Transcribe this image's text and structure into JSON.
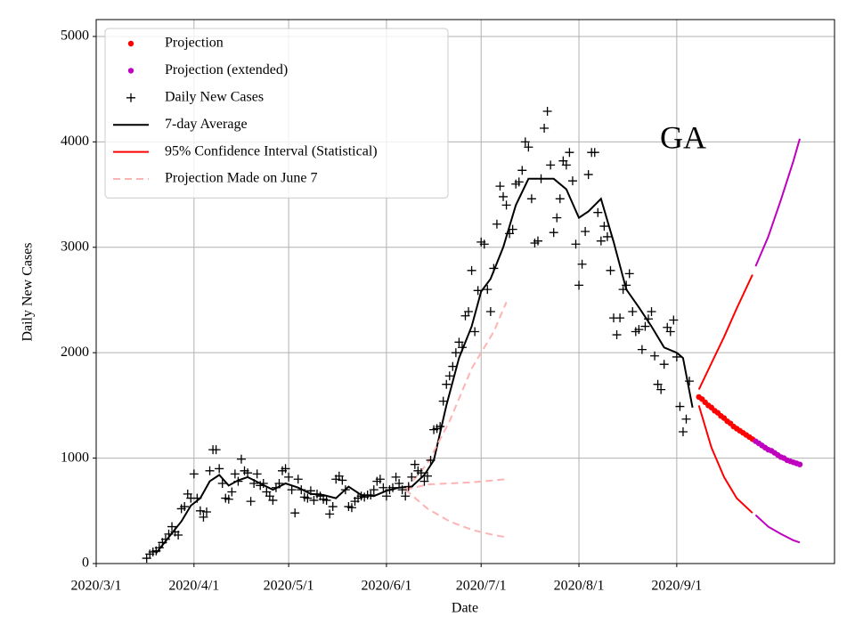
{
  "chart_data": {
    "type": "line",
    "title": "GA",
    "x_label": "Date",
    "y_label": "Daily New Cases",
    "xlim": [
      "2020/3/1",
      "2020/10/21"
    ],
    "xticks": [
      "2020/3/1",
      "2020/4/1",
      "2020/5/1",
      "2020/6/1",
      "2020/7/1",
      "2020/8/1",
      "2020/9/1"
    ],
    "ylim": [
      0,
      5160
    ],
    "yticks": [
      0,
      1000,
      2000,
      3000,
      4000,
      5000
    ],
    "grid": true,
    "legend": "upper left",
    "series": [
      {
        "name": "Projection",
        "color": "#ff0000",
        "marker": "dot",
        "x": [
          "2020/9/8",
          "2020/9/9",
          "2020/9/10",
          "2020/9/11",
          "2020/9/12",
          "2020/9/13",
          "2020/9/14",
          "2020/9/15",
          "2020/9/16",
          "2020/9/17",
          "2020/9/18",
          "2020/9/19",
          "2020/9/20",
          "2020/9/21",
          "2020/9/22",
          "2020/9/23",
          "2020/9/24",
          "2020/9/25"
        ],
        "values": [
          1580,
          1560,
          1530,
          1500,
          1480,
          1450,
          1430,
          1400,
          1380,
          1350,
          1330,
          1300,
          1280,
          1260,
          1240,
          1220,
          1200,
          1180
        ]
      },
      {
        "name": "Projection (extended)",
        "color": "#bf00bf",
        "marker": "dot",
        "x": [
          "2020/9/26",
          "2020/9/27",
          "2020/9/28",
          "2020/9/29",
          "2020/9/30",
          "2020/10/1",
          "2020/10/2",
          "2020/10/3",
          "2020/10/4",
          "2020/10/5",
          "2020/10/6",
          "2020/10/7",
          "2020/10/8",
          "2020/10/9",
          "2020/10/10"
        ],
        "values": [
          1160,
          1140,
          1120,
          1100,
          1080,
          1070,
          1050,
          1030,
          1010,
          1000,
          980,
          970,
          960,
          950,
          940
        ]
      },
      {
        "name": "Daily New Cases",
        "color": "#000000",
        "marker": "plus",
        "x": [
          "2020/3/17",
          "2020/3/18",
          "2020/3/19",
          "2020/3/20",
          "2020/3/21",
          "2020/3/22",
          "2020/3/23",
          "2020/3/24",
          "2020/3/25",
          "2020/3/26",
          "2020/3/27",
          "2020/3/28",
          "2020/3/29",
          "2020/3/30",
          "2020/3/31",
          "2020/4/1",
          "2020/4/2",
          "2020/4/3",
          "2020/4/4",
          "2020/4/5",
          "2020/4/6",
          "2020/4/7",
          "2020/4/8",
          "2020/4/9",
          "2020/4/10",
          "2020/4/11",
          "2020/4/12",
          "2020/4/13",
          "2020/4/14",
          "2020/4/15",
          "2020/4/16",
          "2020/4/17",
          "2020/4/18",
          "2020/4/19",
          "2020/4/20",
          "2020/4/21",
          "2020/4/22",
          "2020/4/23",
          "2020/4/24",
          "2020/4/25",
          "2020/4/26",
          "2020/4/27",
          "2020/4/28",
          "2020/4/29",
          "2020/4/30",
          "2020/5/1",
          "2020/5/2",
          "2020/5/3",
          "2020/5/4",
          "2020/5/5",
          "2020/5/6",
          "2020/5/7",
          "2020/5/8",
          "2020/5/9",
          "2020/5/10",
          "2020/5/11",
          "2020/5/12",
          "2020/5/13",
          "2020/5/14",
          "2020/5/15",
          "2020/5/16",
          "2020/5/17",
          "2020/5/18",
          "2020/5/19",
          "2020/5/20",
          "2020/5/21",
          "2020/5/22",
          "2020/5/23",
          "2020/5/24",
          "2020/5/25",
          "2020/5/26",
          "2020/5/27",
          "2020/5/28",
          "2020/5/29",
          "2020/5/30",
          "2020/5/31",
          "2020/6/1",
          "2020/6/2",
          "2020/6/3",
          "2020/6/4",
          "2020/6/5",
          "2020/6/6",
          "2020/6/7",
          "2020/6/8",
          "2020/6/9",
          "2020/6/10",
          "2020/6/11",
          "2020/6/12",
          "2020/6/13",
          "2020/6/14",
          "2020/6/15",
          "2020/6/16",
          "2020/6/17",
          "2020/6/18",
          "2020/6/19",
          "2020/6/20",
          "2020/6/21",
          "2020/6/22",
          "2020/6/23",
          "2020/6/24",
          "2020/6/25",
          "2020/6/26",
          "2020/6/27",
          "2020/6/28",
          "2020/6/29",
          "2020/6/30",
          "2020/7/1",
          "2020/7/2",
          "2020/7/3",
          "2020/7/4",
          "2020/7/5",
          "2020/7/6",
          "2020/7/7",
          "2020/7/8",
          "2020/7/9",
          "2020/7/10",
          "2020/7/11",
          "2020/7/12",
          "2020/7/13",
          "2020/7/14",
          "2020/7/15",
          "2020/7/16",
          "2020/7/17",
          "2020/7/18",
          "2020/7/19",
          "2020/7/20",
          "2020/7/21",
          "2020/7/22",
          "2020/7/23",
          "2020/7/24",
          "2020/7/25",
          "2020/7/26",
          "2020/7/27",
          "2020/7/28",
          "2020/7/29",
          "2020/7/30",
          "2020/7/31",
          "2020/8/1",
          "2020/8/2",
          "2020/8/3",
          "2020/8/4",
          "2020/8/5",
          "2020/8/6",
          "2020/8/7",
          "2020/8/8",
          "2020/8/9",
          "2020/8/10",
          "2020/8/11",
          "2020/8/12",
          "2020/8/13",
          "2020/8/14",
          "2020/8/15",
          "2020/8/16",
          "2020/8/17",
          "2020/8/18",
          "2020/8/19",
          "2020/8/20",
          "2020/8/21",
          "2020/8/22",
          "2020/8/23",
          "2020/8/24",
          "2020/8/25",
          "2020/8/26",
          "2020/8/27",
          "2020/8/28",
          "2020/8/29",
          "2020/8/30",
          "2020/8/31",
          "2020/9/1",
          "2020/9/2",
          "2020/9/3",
          "2020/9/4",
          "2020/9/5"
        ],
        "values": [
          50,
          90,
          110,
          120,
          150,
          200,
          230,
          280,
          350,
          300,
          270,
          520,
          540,
          660,
          620,
          850,
          620,
          500,
          440,
          490,
          880,
          1080,
          1080,
          900,
          760,
          620,
          610,
          680,
          850,
          780,
          990,
          880,
          860,
          590,
          760,
          850,
          740,
          760,
          680,
          640,
          600,
          720,
          760,
          880,
          900,
          820,
          700,
          480,
          800,
          700,
          630,
          620,
          690,
          600,
          660,
          640,
          610,
          600,
          470,
          540,
          800,
          830,
          790,
          700,
          540,
          530,
          590,
          620,
          640,
          630,
          650,
          650,
          700,
          780,
          800,
          720,
          640,
          700,
          720,
          820,
          760,
          700,
          640,
          730,
          820,
          940,
          880,
          860,
          780,
          830,
          980,
          1270,
          1280,
          1300,
          1540,
          1700,
          1780,
          1870,
          2000,
          2100,
          2050,
          2350,
          2390,
          2780,
          2200,
          2590,
          3050,
          3030,
          2600,
          2390,
          2800,
          3220,
          3580,
          3480,
          3400,
          3130,
          3170,
          3600,
          3620,
          3730,
          4000,
          3950,
          3460,
          3040,
          3060,
          3650,
          4130,
          4290,
          3780,
          3140,
          3280,
          3460,
          3820,
          3780,
          3900,
          3630,
          3030,
          2640,
          2840,
          3150,
          3690,
          3900,
          3900,
          3330,
          3060,
          3200,
          3100,
          2780,
          2330,
          2170,
          2330,
          2600,
          2640,
          2750,
          2390,
          2200,
          2220,
          2030,
          2250,
          2320,
          2390,
          1970,
          1700,
          1650,
          1890,
          2240,
          2200,
          2310,
          1960,
          1490,
          1250,
          1370,
          1730
        ]
      },
      {
        "name": "7-day Average",
        "color": "#000000",
        "line": "solid",
        "segments": [
          {
            "x": [
              "2020/3/20",
              "2020/3/24",
              "2020/3/28",
              "2020/3/31",
              "2020/4/3",
              "2020/4/6",
              "2020/4/9",
              "2020/4/12",
              "2020/4/15",
              "2020/4/18",
              "2020/4/22",
              "2020/4/26",
              "2020/4/30",
              "2020/5/4",
              "2020/5/8",
              "2020/5/12",
              "2020/5/16",
              "2020/5/20",
              "2020/5/24",
              "2020/5/28",
              "2020/6/1",
              "2020/6/5",
              "2020/6/9",
              "2020/6/13",
              "2020/6/16",
              "2020/6/20",
              "2020/6/24",
              "2020/6/28",
              "2020/7/1",
              "2020/7/4",
              "2020/7/8",
              "2020/7/12",
              "2020/7/16",
              "2020/7/20",
              "2020/7/24",
              "2020/7/28",
              "2020/8/1",
              "2020/8/4",
              "2020/8/8",
              "2020/8/12",
              "2020/8/16",
              "2020/8/20",
              "2020/8/24",
              "2020/8/28",
              "2020/9/1",
              "2020/9/3",
              "2020/9/6"
            ],
            "values": [
              100,
              250,
              400,
              550,
              620,
              780,
              840,
              740,
              790,
              820,
              760,
              700,
              760,
              720,
              660,
              650,
              620,
              730,
              650,
              640,
              690,
              720,
              730,
              840,
              980,
              1500,
              1950,
              2250,
              2580,
              2700,
              3000,
              3400,
              3650,
              3650,
              3650,
              3550,
              3280,
              3340,
              3460,
              3050,
              2600,
              2430,
              2250,
              2050,
              2000,
              1950,
              1480
            ]
          }
        ]
      },
      {
        "name": "95% Confidence Interval (Statistical)",
        "color": "#ff0000",
        "line": "solid",
        "segments": [
          {
            "x": [
              "2020/9/8",
              "2020/9/12",
              "2020/9/16",
              "2020/9/20",
              "2020/9/25"
            ],
            "values": [
              1650,
              1900,
              2150,
              2420,
              2740
            ]
          },
          {
            "x": [
              "2020/9/8",
              "2020/9/12",
              "2020/9/16",
              "2020/9/20",
              "2020/9/25"
            ],
            "values": [
              1500,
              1100,
              820,
              620,
              480
            ]
          },
          {
            "color": "#bf00bf",
            "x": [
              "2020/9/26",
              "2020/9/30",
              "2020/10/4",
              "2020/10/8",
              "2020/10/10"
            ],
            "values": [
              2820,
              3100,
              3450,
              3820,
              4030
            ]
          },
          {
            "color": "#bf00bf",
            "x": [
              "2020/9/26",
              "2020/9/30",
              "2020/10/4",
              "2020/10/8",
              "2020/10/10"
            ],
            "values": [
              460,
              350,
              280,
              220,
              200
            ]
          }
        ]
      },
      {
        "name": "Projection Made on June 7",
        "color": "#ffb3b3",
        "line": "dashed",
        "segments": [
          {
            "x": [
              "2020/6/7",
              "2020/6/14",
              "2020/6/21",
              "2020/6/28",
              "2020/7/5",
              "2020/7/9"
            ],
            "values": [
              700,
              950,
              1350,
              1850,
              2200,
              2480
            ]
          },
          {
            "x": [
              "2020/6/7",
              "2020/6/14",
              "2020/6/21",
              "2020/6/28",
              "2020/7/5",
              "2020/7/9"
            ],
            "values": [
              700,
              750,
              760,
              770,
              790,
              800
            ]
          },
          {
            "x": [
              "2020/6/7",
              "2020/6/14",
              "2020/6/21",
              "2020/6/28",
              "2020/7/5",
              "2020/7/9"
            ],
            "values": [
              700,
              520,
              400,
              320,
              270,
              250
            ]
          }
        ]
      }
    ]
  }
}
